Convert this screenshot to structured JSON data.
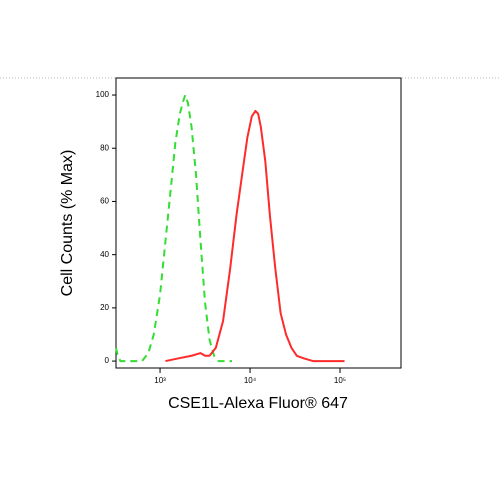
{
  "chart_data": {
    "type": "line",
    "x_label": "CSE1L-Alexa Fluor® 647",
    "y_label": "Cell Counts (% Max)",
    "xscale": "log",
    "xlim": [
      324,
      476000
    ],
    "ylim": [
      -2.6,
      106.4
    ],
    "xticks": [
      {
        "value": 1000,
        "label": "10³"
      },
      {
        "value": 10000,
        "label": "10⁴"
      },
      {
        "value": 100000,
        "label": "10⁵"
      }
    ],
    "yticks": [
      0,
      20,
      40,
      60,
      80,
      100
    ],
    "series": [
      {
        "color": "#33dd33",
        "dash": true,
        "x": [
          324,
          339,
          363,
          631,
          741,
          851,
          1000,
          1148,
          1318,
          1479,
          1660,
          1820,
          1905,
          2042,
          2239,
          2512,
          2818,
          3162,
          3548,
          3981,
          4467,
          6310
        ],
        "values": [
          5,
          2,
          0,
          0,
          3,
          10,
          25,
          45,
          65,
          82,
          93,
          98,
          100,
          97,
          88,
          70,
          45,
          22,
          8,
          2,
          0,
          0
        ]
      },
      {
        "color": "#ff2a2a",
        "dash": false,
        "x": [
          1148,
          1585,
          2239,
          2818,
          3162,
          3548,
          4169,
          5012,
          6026,
          7079,
          8318,
          9333,
          10471,
          11482,
          12303,
          13183,
          14791,
          16596,
          19055,
          21878,
          25119,
          28840,
          33113,
          39811,
          50119,
          112202
        ],
        "values": [
          0,
          1,
          2,
          3,
          2,
          2,
          5,
          15,
          35,
          55,
          72,
          84,
          92,
          94,
          93,
          88,
          75,
          55,
          35,
          18,
          10,
          5,
          2,
          1,
          0,
          0
        ]
      }
    ]
  }
}
